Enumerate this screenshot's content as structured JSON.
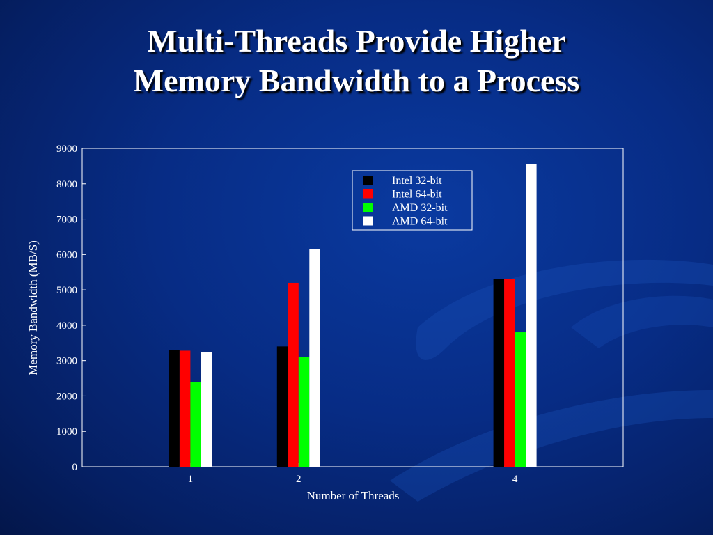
{
  "slide": {
    "title_line1": "Multi-Threads Provide Higher",
    "title_line2": "Memory Bandwidth to a Process"
  },
  "chart_data": {
    "type": "bar",
    "categories": [
      "1",
      "2",
      "4"
    ],
    "x_positions": [
      1,
      2,
      4
    ],
    "xlim": [
      0,
      5
    ],
    "ylim": [
      0,
      9000
    ],
    "yticks": [
      0,
      1000,
      2000,
      3000,
      4000,
      5000,
      6000,
      7000,
      8000,
      9000
    ],
    "xlabel": "Number of Threads",
    "ylabel": "Memory Bandwidth (MB/S)",
    "grid": false,
    "legend_position": "top-right",
    "series": [
      {
        "name": "Intel 32-bit",
        "color": "#000000",
        "values": [
          3300,
          3400,
          5300
        ]
      },
      {
        "name": "Intel 64-bit",
        "color": "#ff0000",
        "values": [
          3280,
          5200,
          5300
        ]
      },
      {
        "name": "AMD 32-bit",
        "color": "#00ff00",
        "values": [
          2400,
          3100,
          3800
        ]
      },
      {
        "name": "AMD 64-bit",
        "color": "#ffffff",
        "values": [
          3230,
          6150,
          8550
        ]
      }
    ]
  }
}
